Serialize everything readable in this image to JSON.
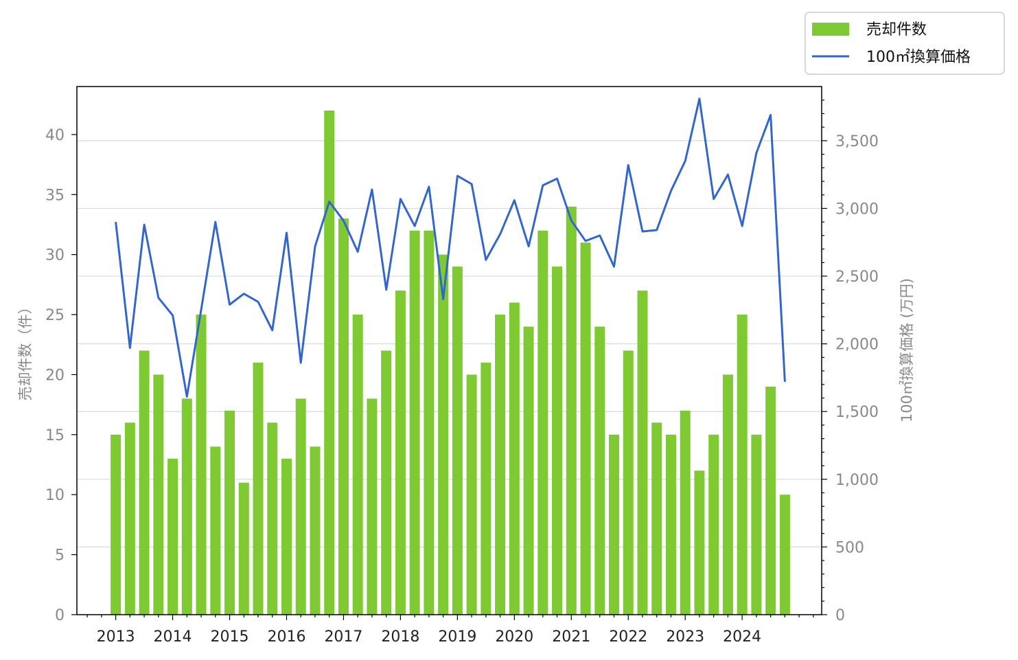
{
  "chart_data": {
    "type": "bar",
    "x_tick_labels": [
      "2013",
      "2014",
      "2015",
      "2016",
      "2017",
      "2018",
      "2019",
      "2020",
      "2021",
      "2022",
      "2023",
      "2024"
    ],
    "series": [
      {
        "name": "売却件数",
        "type": "bar",
        "axis": "left",
        "color": "#7fca32",
        "values": [
          15,
          16,
          22,
          20,
          13,
          18,
          25,
          14,
          17,
          11,
          21,
          16,
          13,
          18,
          14,
          42,
          33,
          25,
          18,
          22,
          27,
          32,
          32,
          30,
          29,
          20,
          21,
          25,
          26,
          24,
          32,
          29,
          34,
          31,
          24,
          15,
          22,
          27,
          16,
          15,
          17,
          12,
          15,
          20,
          25,
          15,
          19,
          10
        ]
      },
      {
        "name": "100㎡換算価格",
        "type": "line",
        "axis": "right",
        "color": "#3366cc",
        "values": [
          2900,
          1970,
          2880,
          2340,
          2210,
          1610,
          2250,
          2900,
          2290,
          2370,
          2310,
          2100,
          2820,
          1860,
          2720,
          3050,
          2910,
          2680,
          3140,
          2400,
          3070,
          2870,
          3160,
          2330,
          3240,
          3180,
          2620,
          2810,
          3060,
          2720,
          3170,
          3220,
          2910,
          2760,
          2800,
          2570,
          3320,
          2830,
          2840,
          3130,
          3350,
          3810,
          3070,
          3250,
          2870,
          3410,
          3690,
          1720
        ]
      }
    ],
    "left_axis": {
      "label": "売却件数（件）",
      "ylim": [
        0,
        44
      ],
      "ticks": [
        "0",
        "5",
        "10",
        "15",
        "20",
        "25",
        "30",
        "35",
        "40"
      ]
    },
    "right_axis": {
      "label": "100㎡換算価格 (万円)",
      "ylim": [
        0,
        3900
      ],
      "ticks": [
        "0",
        "500",
        "1,000",
        "1,500",
        "2,000",
        "2,500",
        "3,000",
        "3,500"
      ]
    },
    "grid": true,
    "legend_position": "top-right"
  }
}
